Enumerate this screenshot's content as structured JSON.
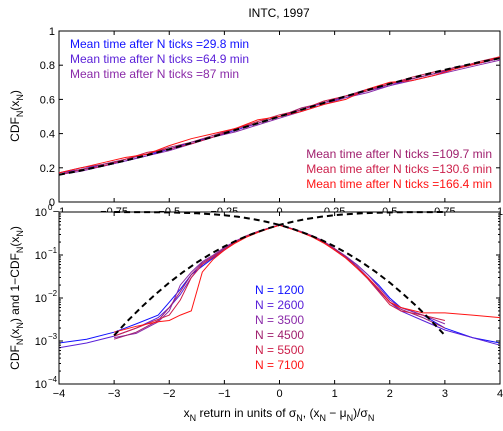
{
  "figure": {
    "title": "INTC, 1997"
  },
  "colors": {
    "s1": "#1010ff",
    "s2": "#5a20d8",
    "s3": "#8a2aa8",
    "s4": "#a0206e",
    "s5": "#cc1f4a",
    "s6": "#ff1414",
    "gaussian": "#000000",
    "axis": "#000000"
  },
  "chart_data": [
    {
      "type": "line",
      "panel": "top",
      "ylabel_main": "CDF",
      "ylabel_sub": "N",
      "ylabel_paren": "(x",
      "ylabel_paren_sub": "N",
      "ylabel_close": ")",
      "xlim": [
        -1,
        1
      ],
      "ylim": [
        0,
        1
      ],
      "xticks": [
        -1,
        -0.75,
        -0.5,
        -0.25,
        0,
        0.25,
        0.5,
        0.75,
        1
      ],
      "xtick_labels": [
        "−1",
        "−0.75",
        "−0.5",
        "−0.25",
        "0",
        "0.25",
        "0.5",
        "0.75",
        "1"
      ],
      "yticks": [
        0,
        0.2,
        0.4,
        0.6,
        0.8,
        1
      ],
      "ytick_labels": [
        "0",
        "0.2",
        "0.4",
        "0.6",
        "0.8",
        "1"
      ],
      "annotations": [
        "Mean time after N ticks =29.8 min",
        "Mean time after N ticks =64.9 min",
        "Mean time after N ticks =87 min",
        "Mean time after N ticks =109.7 min",
        "Mean time after N ticks =130.6 min",
        "Mean time after N ticks =166.4 min"
      ],
      "x": [
        -1,
        -0.9,
        -0.8,
        -0.7,
        -0.6,
        -0.5,
        -0.4,
        -0.3,
        -0.2,
        -0.1,
        0,
        0.1,
        0.2,
        0.3,
        0.4,
        0.5,
        0.6,
        0.7,
        0.8,
        0.9,
        1
      ],
      "series": [
        {
          "values": [
            0.16,
            0.19,
            0.21,
            0.24,
            0.27,
            0.31,
            0.35,
            0.38,
            0.42,
            0.46,
            0.5,
            0.54,
            0.58,
            0.62,
            0.65,
            0.69,
            0.72,
            0.75,
            0.78,
            0.81,
            0.84
          ]
        },
        {
          "values": [
            0.17,
            0.19,
            0.22,
            0.25,
            0.28,
            0.31,
            0.34,
            0.38,
            0.42,
            0.46,
            0.5,
            0.54,
            0.58,
            0.61,
            0.65,
            0.68,
            0.72,
            0.75,
            0.78,
            0.81,
            0.84
          ]
        },
        {
          "values": [
            0.16,
            0.18,
            0.21,
            0.24,
            0.27,
            0.3,
            0.34,
            0.38,
            0.41,
            0.45,
            0.49,
            0.53,
            0.57,
            0.61,
            0.64,
            0.68,
            0.71,
            0.74,
            0.77,
            0.8,
            0.83
          ]
        },
        {
          "values": [
            0.17,
            0.2,
            0.22,
            0.25,
            0.28,
            0.32,
            0.35,
            0.39,
            0.43,
            0.46,
            0.5,
            0.55,
            0.58,
            0.62,
            0.66,
            0.69,
            0.72,
            0.75,
            0.79,
            0.81,
            0.84
          ]
        },
        {
          "values": [
            0.16,
            0.19,
            0.21,
            0.25,
            0.29,
            0.31,
            0.34,
            0.38,
            0.43,
            0.47,
            0.51,
            0.54,
            0.59,
            0.62,
            0.65,
            0.69,
            0.73,
            0.76,
            0.78,
            0.82,
            0.85
          ]
        },
        {
          "values": [
            0.17,
            0.2,
            0.23,
            0.26,
            0.28,
            0.33,
            0.37,
            0.4,
            0.43,
            0.48,
            0.5,
            0.53,
            0.57,
            0.6,
            0.66,
            0.7,
            0.71,
            0.74,
            0.78,
            0.81,
            0.85
          ]
        },
        {
          "values": [
            0.159,
            0.184,
            0.212,
            0.242,
            0.274,
            0.309,
            0.345,
            0.382,
            0.421,
            0.46,
            0.5,
            0.54,
            0.579,
            0.618,
            0.655,
            0.691,
            0.726,
            0.758,
            0.788,
            0.816,
            0.841
          ]
        }
      ]
    },
    {
      "type": "line",
      "panel": "bottom",
      "yscale": "log",
      "xlabel_main": "x",
      "xlabel_sub": "N",
      "xlabel_text": " return in units of σ",
      "xlabel_sub2": "N",
      "xlabel_rest": ", (x",
      "xlabel_sub3": "N",
      "xlabel_minus": " − μ",
      "xlabel_sub4": "N",
      "xlabel_close": ")/σ",
      "xlabel_sub5": "N",
      "ylabel_a": "CDF",
      "ylabel_a_sub": "N",
      "ylabel_b": "(x",
      "ylabel_b_sub": "N",
      "ylabel_c": ") and 1−CDF",
      "ylabel_c_sub": "N",
      "ylabel_d": "(x",
      "ylabel_d_sub": "N",
      "ylabel_e": ")",
      "xlim": [
        -4,
        4
      ],
      "ylim": [
        0.0001,
        1
      ],
      "xticks": [
        -4,
        -3,
        -2,
        -1,
        0,
        1,
        2,
        3,
        4
      ],
      "xtick_labels": [
        "−4",
        "−3",
        "−2",
        "−1",
        "0",
        "1",
        "2",
        "3",
        "4"
      ],
      "ytick_base": "10",
      "ytick_exps": [
        "0",
        "−1",
        "−2",
        "−3",
        "−4"
      ],
      "ytick_values": [
        1,
        0.1,
        0.01,
        0.001,
        0.0001
      ],
      "legend": [
        "N = 1200",
        "N = 2600",
        "N = 3500",
        "N = 4500",
        "N = 5500",
        "N = 7100"
      ],
      "left_tail_x": [
        -4,
        -3.5,
        -3,
        -2.6,
        -2.2,
        -2,
        -1.8,
        -1.6,
        -1.4,
        -1.2,
        -1,
        -0.8,
        -0.6,
        -0.4,
        -0.2,
        0
      ],
      "left_series": [
        [
          0.0009,
          0.0011,
          0.0016,
          0.0025,
          0.004,
          0.008,
          0.016,
          0.035,
          0.055,
          0.085,
          0.13,
          0.2,
          0.27,
          0.34,
          0.42,
          0.5
        ],
        [
          0.0007,
          0.0009,
          0.0013,
          0.002,
          0.0035,
          0.006,
          0.012,
          0.03,
          0.06,
          0.09,
          0.14,
          0.21,
          0.27,
          0.34,
          0.42,
          0.5
        ],
        [
          null,
          null,
          0.0012,
          0.0015,
          0.0028,
          0.005,
          0.02,
          0.04,
          0.07,
          0.1,
          0.15,
          0.21,
          0.28,
          0.35,
          0.42,
          0.5
        ],
        [
          null,
          null,
          0.0011,
          0.0016,
          0.003,
          0.006,
          0.014,
          0.035,
          0.065,
          0.095,
          0.14,
          0.2,
          0.28,
          0.35,
          0.42,
          0.5
        ],
        [
          null,
          null,
          0.0013,
          0.002,
          0.0032,
          0.004,
          0.009,
          0.03,
          0.06,
          0.09,
          0.13,
          0.2,
          0.27,
          0.34,
          0.41,
          0.49
        ],
        [
          null,
          null,
          0.0016,
          0.0022,
          0.0028,
          0.003,
          0.004,
          0.005,
          0.04,
          0.08,
          0.13,
          0.19,
          0.26,
          0.33,
          0.41,
          0.49
        ]
      ],
      "right_tail_x": [
        0,
        0.2,
        0.4,
        0.6,
        0.8,
        1,
        1.2,
        1.4,
        1.6,
        1.8,
        2,
        2.2,
        2.6,
        3,
        3.5,
        4
      ],
      "right_series": [
        [
          0.5,
          0.42,
          0.34,
          0.27,
          0.2,
          0.14,
          0.09,
          0.06,
          0.035,
          0.02,
          0.01,
          0.006,
          0.004,
          0.002,
          0.0012,
          0.0009
        ],
        [
          0.5,
          0.42,
          0.34,
          0.27,
          0.2,
          0.13,
          0.09,
          0.055,
          0.03,
          0.015,
          0.008,
          0.005,
          0.003,
          0.0018,
          0.0012,
          0.0008
        ],
        [
          0.5,
          0.42,
          0.35,
          0.28,
          0.21,
          0.14,
          0.095,
          0.06,
          0.035,
          0.018,
          0.009,
          0.006,
          0.004,
          0.0025,
          null,
          null
        ],
        [
          0.5,
          0.42,
          0.34,
          0.27,
          0.2,
          0.14,
          0.09,
          0.055,
          0.03,
          0.016,
          0.008,
          0.0055,
          0.0035,
          0.002,
          null,
          null
        ],
        [
          0.49,
          0.41,
          0.34,
          0.27,
          0.2,
          0.13,
          0.085,
          0.05,
          0.028,
          0.014,
          0.007,
          0.005,
          0.004,
          0.003,
          null,
          null
        ],
        [
          0.49,
          0.41,
          0.33,
          0.26,
          0.19,
          0.13,
          0.085,
          0.05,
          0.03,
          0.016,
          0.008,
          0.006,
          0.0045,
          0.0045,
          0.004,
          0.0035
        ]
      ],
      "gaussian_x": [
        -3,
        -2.75,
        -2.5,
        -2.25,
        -2,
        -1.75,
        -1.5,
        -1.25,
        -1,
        -0.75,
        -0.5,
        -0.25,
        0,
        0.25,
        0.5,
        0.75,
        1,
        1.25,
        1.5,
        1.75,
        2,
        2.25,
        2.5,
        2.75,
        3
      ],
      "gaussian_cdf": [
        0.00135,
        0.00298,
        0.00621,
        0.01222,
        0.02275,
        0.04006,
        0.06681,
        0.10565,
        0.15866,
        0.22663,
        0.30854,
        0.40129,
        0.5,
        0.59871,
        0.69146,
        0.77337,
        0.84134,
        0.89435,
        0.93319,
        0.95994,
        0.97725,
        0.98778,
        0.99379,
        0.99702,
        0.99865
      ]
    }
  ]
}
